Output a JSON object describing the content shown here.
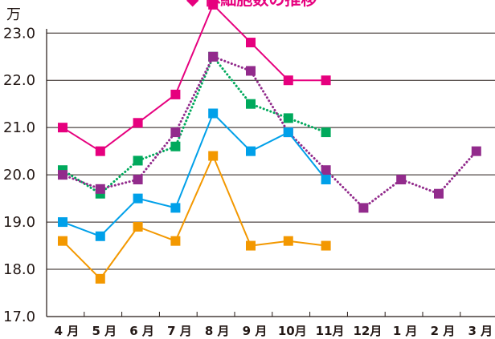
{
  "chart_data": {
    "type": "line",
    "title": "◆ 体細胞数の推移",
    "unit": "万",
    "xlabel": "",
    "ylabel": "",
    "categories": [
      "4 月",
      "5 月",
      "6 月",
      "7 月",
      "8 月",
      "9 月",
      "10月",
      "11月",
      "12月",
      "1 月",
      "2 月",
      "3 月"
    ],
    "y_tick_labels": [
      "17.0",
      "18.0",
      "19.0",
      "20.0",
      "21.0",
      "22.0",
      "23.0"
    ],
    "y_ticks": [
      17,
      18,
      19,
      20,
      21,
      22,
      23
    ],
    "ylim": [
      17,
      23.7
    ],
    "grid": true,
    "series": [
      {
        "color": "#e6007e",
        "style": "solid",
        "values": [
          21.0,
          20.5,
          21.1,
          21.7,
          23.6,
          22.8,
          22.0,
          22.0,
          null,
          null,
          null,
          null
        ]
      },
      {
        "color": "#00a95c",
        "style": "dotted",
        "values": [
          20.1,
          19.6,
          20.3,
          20.6,
          22.5,
          21.5,
          21.2,
          20.9,
          null,
          null,
          null,
          null
        ]
      },
      {
        "color": "#922b8c",
        "style": "dotted",
        "values": [
          20.0,
          19.7,
          19.9,
          20.9,
          22.5,
          22.2,
          20.9,
          20.1,
          19.3,
          19.9,
          19.6,
          20.5
        ]
      },
      {
        "color": "#00a0e9",
        "style": "solid",
        "values": [
          19.0,
          18.7,
          19.5,
          19.3,
          21.3,
          20.5,
          20.9,
          19.9,
          null,
          null,
          null,
          null
        ]
      },
      {
        "color": "#f39800",
        "style": "solid",
        "values": [
          18.6,
          17.8,
          18.9,
          18.6,
          20.4,
          18.5,
          18.6,
          18.5,
          null,
          null,
          null,
          null
        ]
      }
    ]
  }
}
